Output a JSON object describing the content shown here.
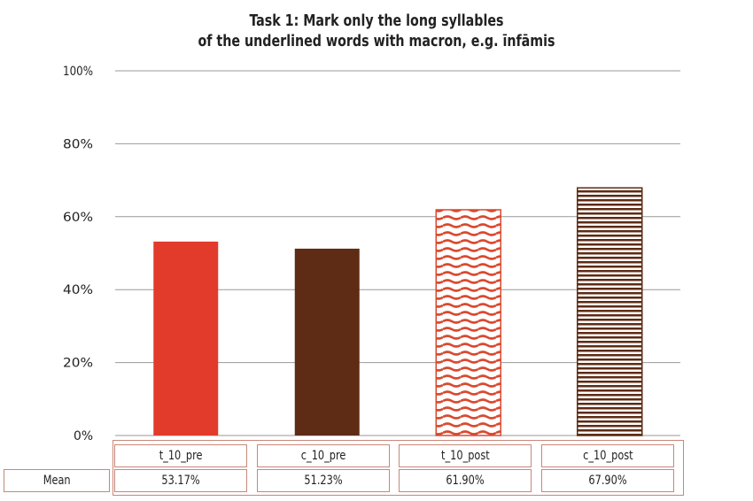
{
  "chart_data": {
    "type": "bar",
    "title": "Task 1: Mark only the long syllables",
    "subtitle": "of the underlined words with macron, e.g. īnfāmis",
    "categories": [
      "t_10_pre",
      "c_10_pre",
      "t_10_post",
      "c_10_post"
    ],
    "values": [
      53.17,
      51.23,
      61.9,
      67.9
    ],
    "value_labels": [
      "53.17%",
      "51.23%",
      "61.90%",
      "67.90%"
    ],
    "row_label": "Mean",
    "yticks": [
      "0%",
      "20%",
      "40%",
      "60%",
      "80%",
      "100%"
    ],
    "ylim": [
      0,
      100
    ],
    "grid": true,
    "legend": "data table below chart",
    "colors": [
      "#e23b2b",
      "#5e2b14",
      "#d94a2f",
      "#5e2b14"
    ],
    "fills": [
      "solid",
      "solid",
      "wave-pattern",
      "horizontal-stripes"
    ]
  }
}
